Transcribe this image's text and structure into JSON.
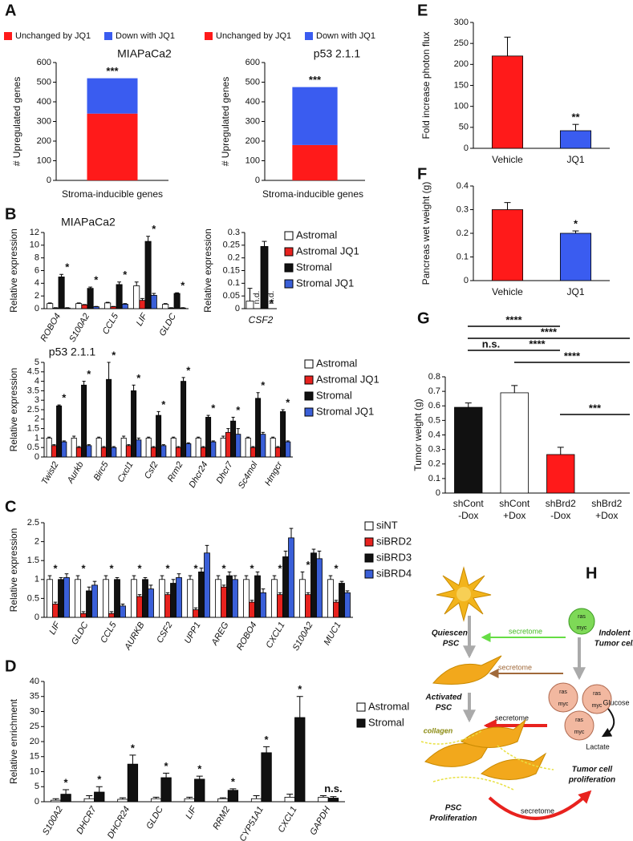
{
  "chart_data": [
    {
      "type": "bar",
      "stacked": true,
      "panel": "A",
      "title": "MIAPaCa2",
      "ylabel": "# Upregulated genes",
      "xlabel": "Stroma-inducible genes",
      "categories": [
        null
      ],
      "series": [
        {
          "name": "Unchanged by JQ1",
          "color": "#ff1a1a",
          "values": [
            340
          ]
        },
        {
          "name": "Down with JQ1",
          "color": "#3a5cf0",
          "values": [
            180
          ]
        }
      ],
      "ylim": [
        0,
        600
      ],
      "yticks": [
        0,
        100,
        200,
        300,
        400,
        500,
        600
      ],
      "annotations": [
        "***"
      ]
    },
    {
      "type": "bar",
      "stacked": true,
      "title": "p53 2.1.1",
      "ylabel": "# Upregulated genes",
      "xlabel": "Stroma-inducible genes",
      "categories": [
        null
      ],
      "series": [
        {
          "name": "Unchanged by JQ1",
          "color": "#ff1a1a",
          "values": [
            180
          ]
        },
        {
          "name": "Down with JQ1",
          "color": "#3a5cf0",
          "values": [
            295
          ]
        }
      ],
      "ylim": [
        0,
        600
      ],
      "yticks": [
        0,
        100,
        200,
        300,
        400,
        500,
        600
      ],
      "annotations": [
        "***"
      ]
    },
    {
      "type": "bar",
      "panel": "B",
      "title": "MIAPaCa2",
      "ylabel": "Relative expression",
      "legend": true,
      "categories": [
        "ROBO4",
        "S100A2",
        "CCL5",
        "LIF",
        "GLDC"
      ],
      "series": [
        {
          "name": "Astromal",
          "color": "#ffffff",
          "values": [
            0.8,
            0.8,
            0.9,
            3.6,
            0.7
          ],
          "errors": [
            0.1,
            0.1,
            0.1,
            0.6,
            0.1
          ]
        },
        {
          "name": "Astromal JQ1",
          "color": "#e8221e",
          "values": [
            0.1,
            0.6,
            0.3,
            1.3,
            0.1
          ],
          "errors": [
            0.05,
            0.05,
            0.05,
            0.3,
            0.05
          ]
        },
        {
          "name": "Stromal",
          "color": "#111111",
          "values": [
            5.0,
            3.2,
            3.8,
            10.6,
            2.4
          ],
          "errors": [
            0.4,
            0.2,
            0.4,
            0.8,
            0.1
          ]
        },
        {
          "name": "Stromal JQ1",
          "color": "#3a5fd8",
          "values": [
            0.1,
            0.3,
            0.7,
            2.1,
            0.1
          ],
          "errors": [
            0.05,
            0.05,
            0.1,
            0.3,
            0.05
          ]
        }
      ],
      "ylim": [
        0,
        12
      ],
      "yticks": [
        0,
        2,
        4,
        6,
        8,
        10,
        12
      ],
      "annotations": [
        "*",
        "*",
        "*",
        "*",
        "*"
      ]
    },
    {
      "type": "bar",
      "ylabel": "Relative expression",
      "categories": [
        "CSF2"
      ],
      "series": [
        {
          "name": "Astromal",
          "color": "#ffffff",
          "values": [
            0.03
          ],
          "errors": [
            0.05
          ]
        },
        {
          "name": "Astromal JQ1",
          "color": "#e8221e",
          "values": [
            null
          ],
          "value_labels": [
            "n.d."
          ]
        },
        {
          "name": "Stromal",
          "color": "#111111",
          "values": [
            0.245
          ],
          "errors": [
            0.02
          ]
        },
        {
          "name": "Stromal JQ1",
          "color": "#3a5fd8",
          "values": [
            null
          ],
          "value_labels": [
            "n.d."
          ]
        }
      ],
      "ylim": [
        0,
        0.3
      ],
      "yticks": [
        0,
        0.05,
        0.1,
        0.15,
        0.2,
        0.25,
        0.3
      ],
      "annotations": [
        "*"
      ]
    },
    {
      "type": "bar",
      "title": "p53 2.1.1",
      "ylabel": "Relative expression",
      "legend": true,
      "categories": [
        "Twist2",
        "Aurkb",
        "Birc5",
        "Cxcl1",
        "Csf2",
        "Rrm2",
        "Dhcr24",
        "Dhcr7",
        "Sc4mol",
        "Hmgcr"
      ],
      "series": [
        {
          "name": "Astromal",
          "color": "#ffffff",
          "values": [
            1,
            1,
            1,
            1,
            1,
            1,
            1,
            1,
            1,
            1
          ],
          "errors": [
            0.05,
            0.1,
            0.05,
            0.1,
            0.05,
            0.05,
            0.05,
            0.1,
            0.05,
            0.05
          ]
        },
        {
          "name": "Astromal JQ1",
          "color": "#e8221e",
          "values": [
            0.6,
            0.5,
            0.5,
            0.6,
            0.5,
            0.5,
            0.5,
            1.3,
            0.5,
            0.5
          ],
          "errors": [
            0.05,
            0.05,
            0.05,
            0.05,
            0.05,
            0.05,
            0.05,
            0.2,
            0.05,
            0.05
          ]
        },
        {
          "name": "Stromal",
          "color": "#111111",
          "values": [
            2.7,
            3.8,
            4.1,
            3.5,
            2.2,
            4.0,
            2.1,
            1.9,
            3.1,
            2.4
          ],
          "errors": [
            0.05,
            0.2,
            0.9,
            0.3,
            0.2,
            0.2,
            0.1,
            0.2,
            0.3,
            0.1
          ]
        },
        {
          "name": "Stromal JQ1",
          "color": "#3a5fd8",
          "values": [
            0.8,
            0.6,
            0.5,
            0.9,
            0.6,
            0.7,
            0.8,
            1.2,
            1.2,
            0.8
          ],
          "errors": [
            0.05,
            0.05,
            0.05,
            0.1,
            0.05,
            0.05,
            0.05,
            0.3,
            0.1,
            0.05
          ]
        }
      ],
      "ylim": [
        0,
        5
      ],
      "yticks": [
        0,
        0.5,
        1,
        1.5,
        2,
        2.5,
        3,
        3.5,
        4,
        4.5,
        5
      ],
      "annotations": [
        "*",
        "*",
        "*",
        "*",
        "*",
        "*",
        "*",
        "*",
        "*",
        "*"
      ]
    },
    {
      "type": "bar",
      "panel": "C",
      "ylabel": "Relative expression",
      "legend": true,
      "categories": [
        "LIF",
        "GLDC",
        "CCL5",
        "AURKB",
        "CSF2",
        "UPP1",
        "AREG",
        "ROBO4",
        "CXCL1",
        "S100A2",
        "MUC1"
      ],
      "series": [
        {
          "name": "siNT",
          "color": "#ffffff",
          "values": [
            1,
            1,
            1,
            1,
            1,
            1,
            1,
            1,
            1,
            1,
            1
          ],
          "errors": [
            0.1,
            0.1,
            0.1,
            0.1,
            0.1,
            0.1,
            0.1,
            0.1,
            0.1,
            0.2,
            0.1
          ]
        },
        {
          "name": "siBRD2",
          "color": "#e8221e",
          "values": [
            0.35,
            0.1,
            0.1,
            0.55,
            0.6,
            0.2,
            0.8,
            0.4,
            0.6,
            0.6,
            0.4
          ],
          "errors": [
            0.05,
            0.05,
            0.05,
            0.05,
            0.05,
            0.05,
            0.05,
            0.05,
            0.05,
            0.05,
            0.05
          ]
        },
        {
          "name": "siBRD3",
          "color": "#111111",
          "values": [
            1.0,
            0.7,
            1.0,
            1.0,
            0.9,
            1.2,
            1.1,
            1.1,
            1.6,
            1.7,
            0.9
          ],
          "errors": [
            0.05,
            0.1,
            0.05,
            0.05,
            0.1,
            0.1,
            0.1,
            0.1,
            0.15,
            0.1,
            0.05
          ]
        },
        {
          "name": "siBRD4",
          "color": "#3a5fd8",
          "values": [
            1.05,
            0.85,
            0.3,
            0.75,
            1.05,
            1.7,
            1.0,
            0.65,
            2.1,
            1.55,
            0.65
          ],
          "errors": [
            0.1,
            0.1,
            0.05,
            0.1,
            0.1,
            0.2,
            0.1,
            0.1,
            0.25,
            0.2,
            0.05
          ]
        }
      ],
      "ylim": [
        0,
        2.5
      ],
      "yticks": [
        0,
        0.5,
        1,
        1.5,
        2,
        2.5
      ],
      "annotations": [
        "*",
        "*",
        "*",
        "*",
        "*",
        "*",
        "*",
        "*",
        "*",
        "*",
        "*"
      ]
    },
    {
      "type": "bar",
      "panel": "D",
      "ylabel": "Relative enrichment",
      "legend": true,
      "categories": [
        "S100A2",
        "DHCR7",
        "DHCR24",
        "GLDC",
        "LIF",
        "RRM2",
        "CYP51A1",
        "CXCL1",
        "GAPDH"
      ],
      "series": [
        {
          "name": "Astromal",
          "color": "#ffffff",
          "values": [
            0.5,
            1,
            0.8,
            1,
            1,
            1,
            1,
            1.5,
            1.5
          ],
          "errors": [
            0.5,
            1,
            0.5,
            0.5,
            0.5,
            0.3,
            1,
            1,
            0.5
          ]
        },
        {
          "name": "Stromal",
          "color": "#111111",
          "values": [
            2.5,
            3.2,
            12.5,
            8,
            7.5,
            3.8,
            16.3,
            28,
            1.2
          ],
          "errors": [
            1.5,
            1.8,
            3,
            1.5,
            1,
            0.5,
            2,
            7,
            0.5
          ]
        }
      ],
      "ylim": [
        0,
        40
      ],
      "yticks": [
        0,
        5,
        10,
        15,
        20,
        25,
        30,
        35,
        40
      ],
      "annotations": [
        "*",
        "*",
        "*",
        "*",
        "*",
        "*",
        "*",
        "*",
        "n.s."
      ]
    },
    {
      "type": "bar",
      "panel": "E",
      "ylabel": "Fold increase photon flux",
      "categories": [
        "Vehicle",
        "JQ1"
      ],
      "values": [
        220,
        42
      ],
      "errors": [
        45,
        15
      ],
      "colors": [
        "#ff1a1a",
        "#3a5cf0"
      ],
      "ylim": [
        0,
        300
      ],
      "yticks": [
        0,
        50,
        100,
        150,
        200,
        250,
        300
      ],
      "annotations": [
        null,
        "**"
      ]
    },
    {
      "type": "bar",
      "panel": "F",
      "ylabel": "Pancreas wet weight (g)",
      "categories": [
        "Vehicle",
        "JQ1"
      ],
      "values": [
        0.3,
        0.2
      ],
      "errors": [
        0.03,
        0.01
      ],
      "colors": [
        "#ff1a1a",
        "#3a5cf0"
      ],
      "ylim": [
        0,
        0.4
      ],
      "yticks": [
        0,
        0.1,
        0.2,
        0.3,
        0.4
      ],
      "annotations": [
        null,
        "*"
      ]
    },
    {
      "type": "bar",
      "panel": "G",
      "ylabel": "Tumor weight (g)",
      "categories": [
        [
          "shCont",
          "-Dox"
        ],
        [
          "shCont",
          "+Dox"
        ],
        [
          "shBrd2",
          "-Dox"
        ],
        [
          "shBrd2",
          "+Dox"
        ]
      ],
      "values": [
        0.59,
        0.69,
        0.265,
        0
      ],
      "errors": [
        0.03,
        0.05,
        0.05,
        0
      ],
      "colors": [
        "#111111",
        "#ffffff",
        "#ff1a1a",
        "#ffffff"
      ],
      "ylim": [
        0,
        0.8
      ],
      "yticks": [
        0,
        0.1,
        0.2,
        0.3,
        0.4,
        0.5,
        0.6,
        0.7,
        0.8
      ],
      "brackets": [
        "****",
        "****",
        "n.s.",
        "****",
        "****",
        "***"
      ]
    }
  ],
  "diagram": {
    "panel": "H",
    "quiescent": [
      "Quiescent",
      "PSC"
    ],
    "indolent": [
      "Indolent",
      "Tumor cell"
    ],
    "activated": [
      "Activated",
      "PSC"
    ],
    "collagen": "collagen",
    "psc_proliferation": [
      "PSC",
      "Proliferation"
    ],
    "tumor_proliferation": [
      "Tumor cell",
      "proliferation"
    ],
    "glucose": "Glucose",
    "lactate": "Lactate",
    "secretome": "secretome",
    "ras": "ras",
    "myc": "myc"
  }
}
